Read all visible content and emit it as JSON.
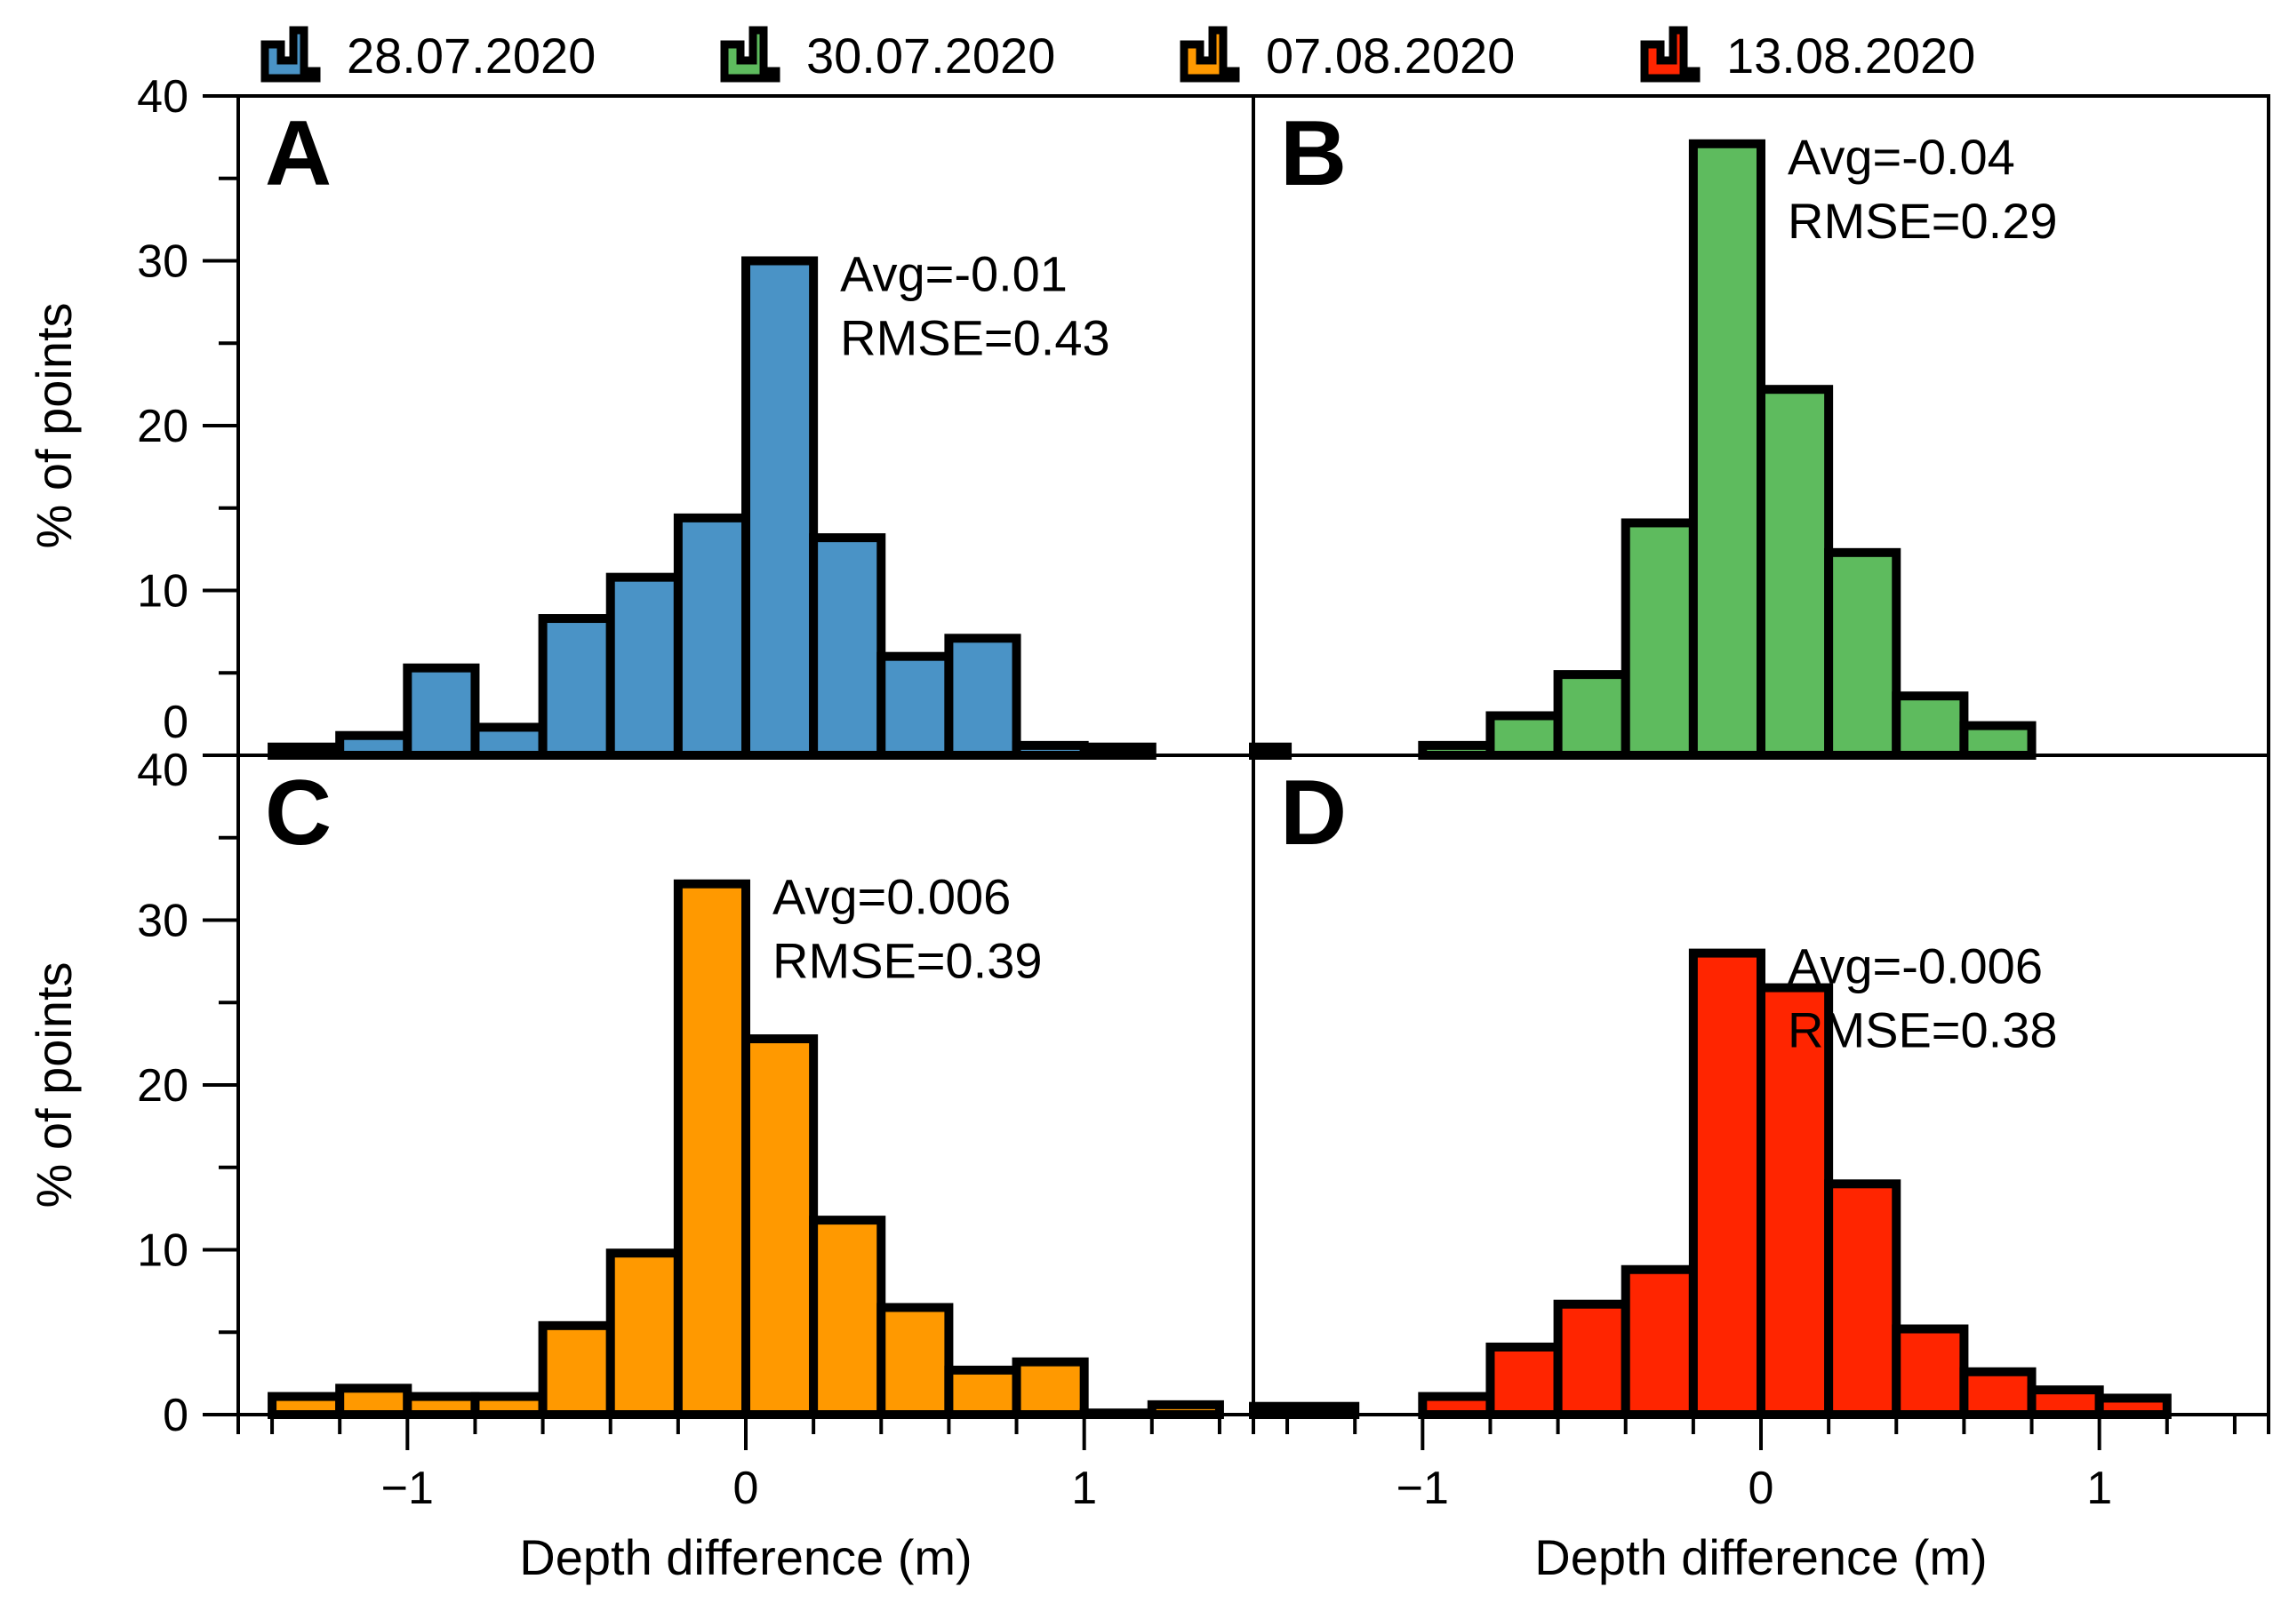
{
  "chart_data": {
    "type": "histogram",
    "x_label": "Depth difference (m)",
    "y_label": "% of points",
    "xlim": [
      -1.5,
      1.5
    ],
    "ylim": [
      0,
      40
    ],
    "x_ticks": [
      -1,
      0,
      1
    ],
    "x_tick_labels": [
      "−1",
      "0",
      "1"
    ],
    "y_ticks": [
      0,
      10,
      20,
      30,
      40
    ],
    "bin_width": 0.2,
    "legend": [
      {
        "label": "28.07.2020",
        "color": "#4a93c6"
      },
      {
        "label": "30.07.2020",
        "color": "#5ebb5e"
      },
      {
        "label": "07.08.2020",
        "color": "#ff9900"
      },
      {
        "label": "13.08.2020",
        "color": "#ff2500"
      }
    ],
    "panels": [
      {
        "letter": "A",
        "series": "28.07.2020",
        "color": "#4a93c6",
        "avg_text": "Avg=-0.01",
        "rmse_text": "RMSE=0.43",
        "bins": [
          {
            "x0": -1.4,
            "x1": -1.2,
            "v": 0.5
          },
          {
            "x0": -1.2,
            "x1": -1.0,
            "v": 1.2
          },
          {
            "x0": -1.0,
            "x1": -0.8,
            "v": 5.3
          },
          {
            "x0": -0.8,
            "x1": -0.6,
            "v": 1.7
          },
          {
            "x0": -0.6,
            "x1": -0.4,
            "v": 8.3
          },
          {
            "x0": -0.4,
            "x1": -0.2,
            "v": 10.8
          },
          {
            "x0": -0.2,
            "x1": 0.0,
            "v": 14.4
          },
          {
            "x0": 0.0,
            "x1": 0.2,
            "v": 30.0
          },
          {
            "x0": 0.2,
            "x1": 0.4,
            "v": 13.2
          },
          {
            "x0": 0.4,
            "x1": 0.6,
            "v": 6.0
          },
          {
            "x0": 0.6,
            "x1": 0.8,
            "v": 7.1
          },
          {
            "x0": 0.8,
            "x1": 1.0,
            "v": 0.6
          },
          {
            "x0": 1.0,
            "x1": 1.2,
            "v": 0.5
          }
        ]
      },
      {
        "letter": "B",
        "series": "30.07.2020",
        "color": "#5ebb5e",
        "avg_text": "Avg=-0.04",
        "rmse_text": "RMSE=0.29",
        "bins": [
          {
            "x0": -1.5,
            "x1": -1.4,
            "v": 0.5
          },
          {
            "x0": -1.0,
            "x1": -0.8,
            "v": 0.6
          },
          {
            "x0": -0.8,
            "x1": -0.6,
            "v": 2.4
          },
          {
            "x0": -0.6,
            "x1": -0.4,
            "v": 4.9
          },
          {
            "x0": -0.4,
            "x1": -0.2,
            "v": 14.1
          },
          {
            "x0": -0.2,
            "x1": 0.0,
            "v": 37.1
          },
          {
            "x0": 0.0,
            "x1": 0.2,
            "v": 22.2
          },
          {
            "x0": 0.2,
            "x1": 0.4,
            "v": 12.3
          },
          {
            "x0": 0.4,
            "x1": 0.6,
            "v": 3.6
          },
          {
            "x0": 0.6,
            "x1": 0.8,
            "v": 1.8
          }
        ]
      },
      {
        "letter": "C",
        "series": "07.08.2020",
        "color": "#ff9900",
        "avg_text": "Avg=0.006",
        "rmse_text": "RMSE=0.39",
        "bins": [
          {
            "x0": -1.4,
            "x1": -1.2,
            "v": 1.1
          },
          {
            "x0": -1.2,
            "x1": -1.0,
            "v": 1.6
          },
          {
            "x0": -1.0,
            "x1": -0.8,
            "v": 1.1
          },
          {
            "x0": -0.8,
            "x1": -0.6,
            "v": 1.1
          },
          {
            "x0": -0.6,
            "x1": -0.4,
            "v": 5.4
          },
          {
            "x0": -0.4,
            "x1": -0.2,
            "v": 9.8
          },
          {
            "x0": -0.2,
            "x1": 0.0,
            "v": 32.2
          },
          {
            "x0": 0.0,
            "x1": 0.2,
            "v": 22.8
          },
          {
            "x0": 0.2,
            "x1": 0.4,
            "v": 11.8
          },
          {
            "x0": 0.4,
            "x1": 0.6,
            "v": 6.5
          },
          {
            "x0": 0.6,
            "x1": 0.8,
            "v": 2.7
          },
          {
            "x0": 0.8,
            "x1": 1.0,
            "v": 3.2
          },
          {
            "x0": 1.0,
            "x1": 1.2,
            "v": 0.1
          },
          {
            "x0": 1.2,
            "x1": 1.4,
            "v": 0.6
          }
        ]
      },
      {
        "letter": "D",
        "series": "13.08.2020",
        "color": "#ff2500",
        "avg_text": "Avg=-0.006",
        "rmse_text": "RMSE=0.38",
        "bins": [
          {
            "x0": -1.5,
            "x1": -1.2,
            "v": 0.5
          },
          {
            "x0": -1.0,
            "x1": -0.8,
            "v": 1.1
          },
          {
            "x0": -0.8,
            "x1": -0.6,
            "v": 4.1
          },
          {
            "x0": -0.6,
            "x1": -0.4,
            "v": 6.7
          },
          {
            "x0": -0.4,
            "x1": -0.2,
            "v": 8.8
          },
          {
            "x0": -0.2,
            "x1": 0.0,
            "v": 28.0
          },
          {
            "x0": 0.0,
            "x1": 0.2,
            "v": 25.9
          },
          {
            "x0": 0.2,
            "x1": 0.4,
            "v": 14.0
          },
          {
            "x0": 0.4,
            "x1": 0.6,
            "v": 5.2
          },
          {
            "x0": 0.6,
            "x1": 0.8,
            "v": 2.6
          },
          {
            "x0": 0.8,
            "x1": 1.0,
            "v": 1.5
          },
          {
            "x0": 1.0,
            "x1": 1.2,
            "v": 1.0
          }
        ]
      }
    ]
  }
}
